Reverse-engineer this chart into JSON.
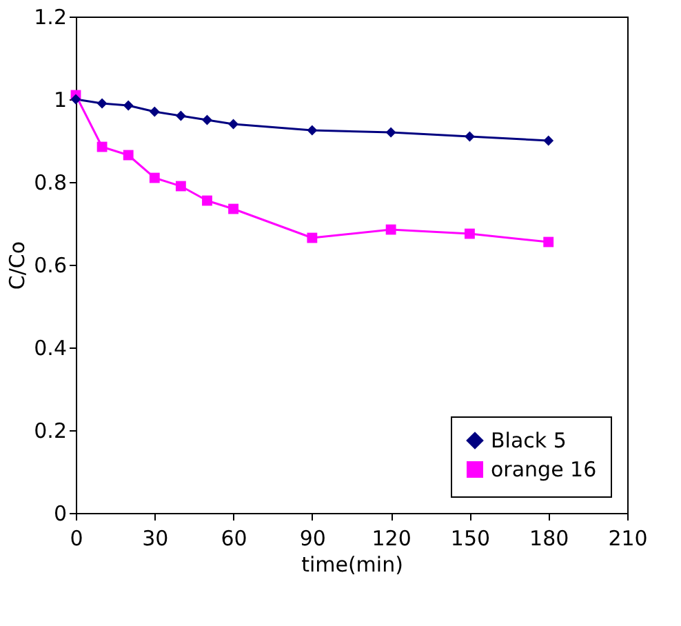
{
  "chart_data": {
    "type": "line",
    "xlabel": "time(min)",
    "ylabel": "C/Co",
    "x": [
      0,
      10,
      20,
      30,
      40,
      50,
      60,
      90,
      120,
      150,
      180
    ],
    "series": [
      {
        "name": "Black 5",
        "color": "#000080",
        "marker": "diamond",
        "values": [
          1.0,
          0.99,
          0.985,
          0.97,
          0.96,
          0.95,
          0.94,
          0.925,
          0.92,
          0.91,
          0.9
        ]
      },
      {
        "name": "orange 16",
        "color": "#ff00ff",
        "marker": "square",
        "values": [
          1.01,
          0.885,
          0.865,
          0.81,
          0.79,
          0.755,
          0.735,
          0.665,
          0.685,
          0.675,
          0.655
        ]
      }
    ],
    "xlim": [
      0,
      210
    ],
    "xticks": [
      0,
      30,
      60,
      90,
      120,
      150,
      180,
      210
    ],
    "ylim": [
      0,
      1.2
    ],
    "yticks": [
      0,
      0.2,
      0.4,
      0.6,
      0.8,
      1,
      1.2
    ],
    "grid": false,
    "legend": "bottom right",
    "line_style": "solid"
  }
}
